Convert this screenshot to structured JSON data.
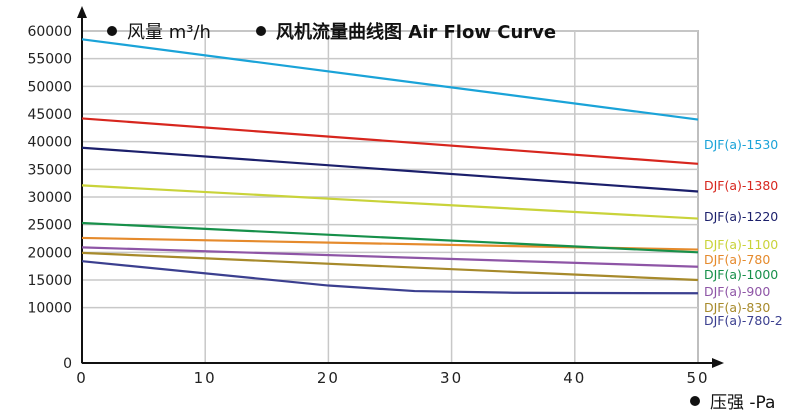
{
  "header": {
    "y_unit_label": "风量 m³/h",
    "title": "风机流量曲线图 Air Flow Curve"
  },
  "x_unit_label": "压强  -Pa",
  "chart_data": {
    "type": "line",
    "title": "风机流量曲线图 Air Flow Curve",
    "xlabel": "压强 -Pa",
    "ylabel": "风量 m³/h",
    "xlim": [
      0,
      50
    ],
    "ylim": [
      0,
      60000
    ],
    "x_ticks": [
      0,
      10,
      20,
      30,
      40,
      50
    ],
    "y_ticks": [
      0,
      10000,
      15000,
      20000,
      25000,
      30000,
      35000,
      40000,
      45000,
      50000,
      55000,
      60000
    ],
    "grid": true,
    "legend": "right-end labels",
    "series": [
      {
        "name": "DJF(a)-1530",
        "color": "#1aa3d8",
        "x": [
          0,
          50
        ],
        "y": [
          58500,
          44000
        ]
      },
      {
        "name": "DJF(a)-1380",
        "color": "#d7261e",
        "x": [
          0,
          50
        ],
        "y": [
          44200,
          36000
        ]
      },
      {
        "name": "DJF(a)-1220",
        "color": "#1b1f6b",
        "x": [
          0,
          50
        ],
        "y": [
          38900,
          31000
        ]
      },
      {
        "name": "DJF(a)-1100",
        "color": "#c9d33a",
        "x": [
          0,
          50
        ],
        "y": [
          32100,
          26100
        ]
      },
      {
        "name": "DJF(a)-780",
        "color": "#e58a2c",
        "x": [
          0,
          50
        ],
        "y": [
          22600,
          20500
        ]
      },
      {
        "name": "DJF(a)-1000",
        "color": "#17904a",
        "x": [
          0,
          50
        ],
        "y": [
          25300,
          20000
        ]
      },
      {
        "name": "DJF(a)-900",
        "color": "#8e55a6",
        "x": [
          0,
          50
        ],
        "y": [
          20900,
          17400
        ]
      },
      {
        "name": "DJF(a)-830",
        "color": "#a78a2b",
        "x": [
          0,
          50
        ],
        "y": [
          19900,
          15000
        ]
      },
      {
        "name": "DJF(a)-780-2",
        "color": "#3b3f8f",
        "x": [
          0,
          20,
          27,
          35,
          50
        ],
        "y": [
          18400,
          14000,
          13000,
          12700,
          12600
        ]
      }
    ]
  }
}
